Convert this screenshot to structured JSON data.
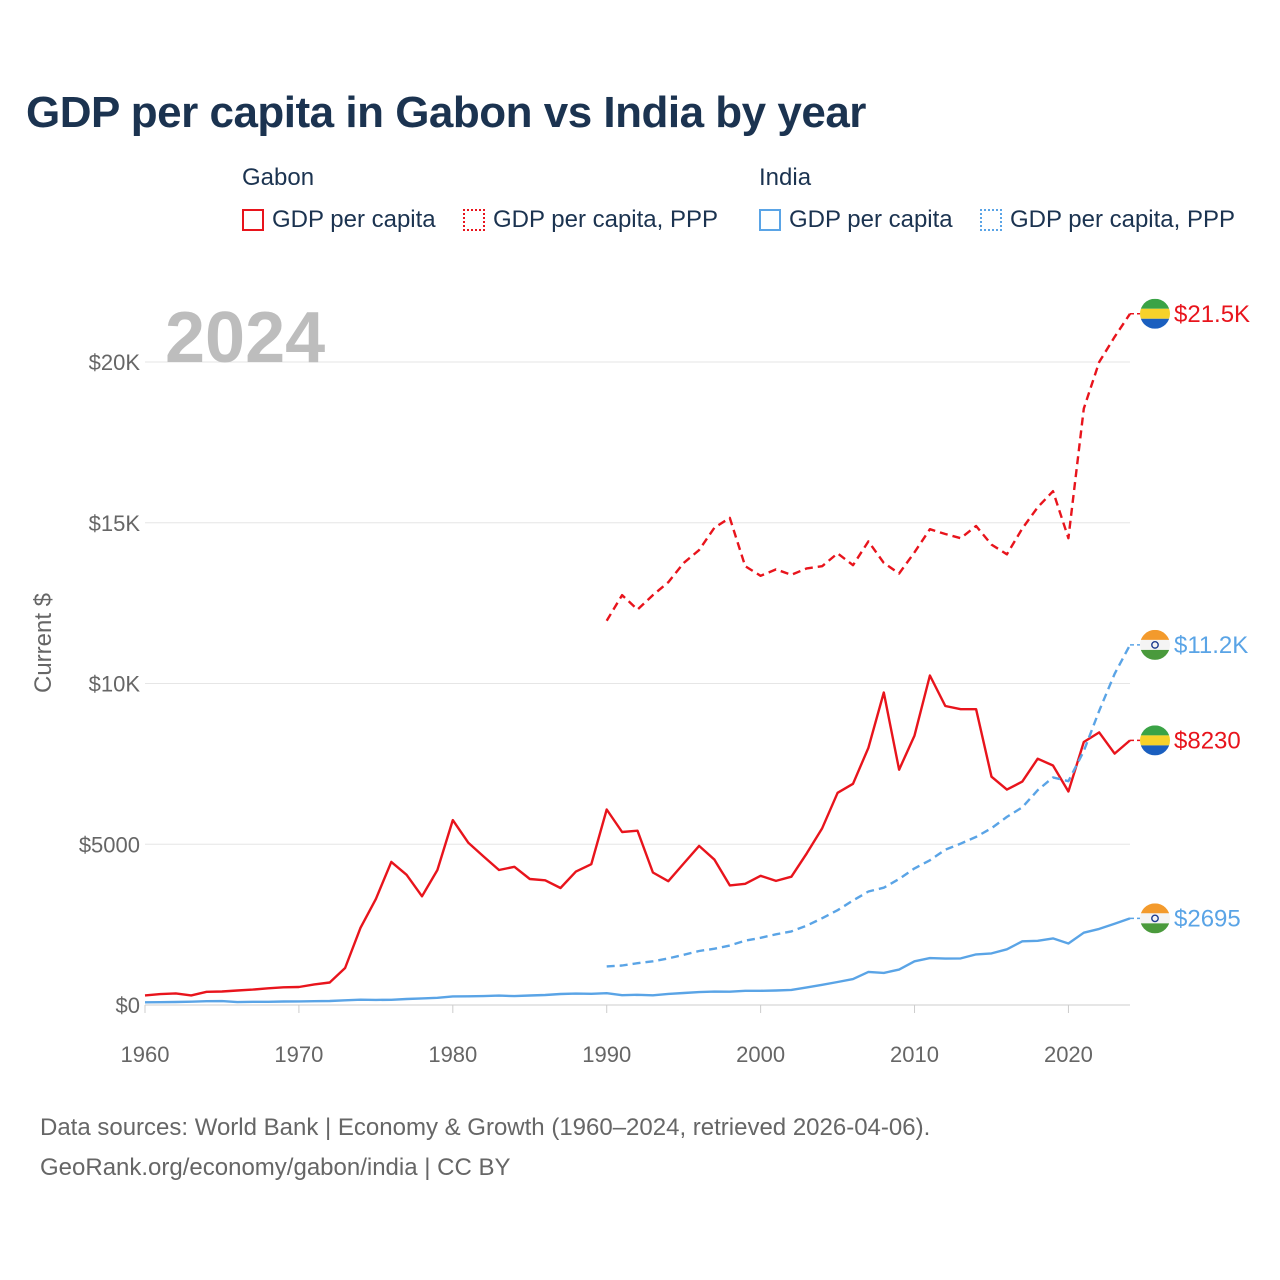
{
  "title": "GDP per capita in Gabon vs India by year",
  "legend": {
    "gabon": {
      "group": "Gabon",
      "items": [
        "GDP per capita",
        "GDP per capita, PPP"
      ]
    },
    "india": {
      "group": "India",
      "items": [
        "GDP per capita",
        "GDP per capita, PPP"
      ]
    }
  },
  "year_badge": "2024",
  "colors": {
    "gabon": "#e8141c",
    "india": "#5aa4e6",
    "grid": "#e6e6e6",
    "axis_text": "#666666",
    "badge": "#bdbdbd"
  },
  "chart_data": {
    "type": "line",
    "xlabel": "",
    "ylabel": "Current $",
    "xlim": [
      1960,
      2024
    ],
    "ylim": [
      0,
      21500
    ],
    "x_ticks": [
      1960,
      1970,
      1980,
      1990,
      2000,
      2010,
      2020
    ],
    "x_tick_labels": [
      "1960",
      "1970",
      "1980",
      "1990",
      "2000",
      "2010",
      "2020"
    ],
    "y_ticks": [
      0,
      5000,
      10000,
      15000,
      20000
    ],
    "y_tick_labels": [
      "$0",
      "$5000",
      "$10K",
      "$15K",
      "$20K"
    ],
    "series": [
      {
        "name": "Gabon GDP per capita",
        "country": "gabon",
        "style": "solid",
        "end_label": "$8230",
        "points": [
          [
            1960,
            300
          ],
          [
            1961,
            340
          ],
          [
            1962,
            360
          ],
          [
            1963,
            300
          ],
          [
            1964,
            410
          ],
          [
            1965,
            420
          ],
          [
            1966,
            450
          ],
          [
            1967,
            480
          ],
          [
            1968,
            520
          ],
          [
            1969,
            550
          ],
          [
            1970,
            560
          ],
          [
            1971,
            640
          ],
          [
            1972,
            700
          ],
          [
            1973,
            1150
          ],
          [
            1974,
            2400
          ],
          [
            1975,
            3300
          ],
          [
            1976,
            4450
          ],
          [
            1977,
            4050
          ],
          [
            1978,
            3380
          ],
          [
            1979,
            4200
          ],
          [
            1980,
            5750
          ],
          [
            1981,
            5050
          ],
          [
            1982,
            4620
          ],
          [
            1983,
            4200
          ],
          [
            1984,
            4300
          ],
          [
            1985,
            3920
          ],
          [
            1986,
            3880
          ],
          [
            1987,
            3640
          ],
          [
            1988,
            4150
          ],
          [
            1989,
            4380
          ],
          [
            1990,
            6080
          ],
          [
            1991,
            5380
          ],
          [
            1992,
            5420
          ],
          [
            1993,
            4120
          ],
          [
            1994,
            3850
          ],
          [
            1995,
            4400
          ],
          [
            1996,
            4950
          ],
          [
            1997,
            4520
          ],
          [
            1998,
            3720
          ],
          [
            1999,
            3770
          ],
          [
            2000,
            4020
          ],
          [
            2001,
            3860
          ],
          [
            2002,
            3990
          ],
          [
            2003,
            4720
          ],
          [
            2004,
            5500
          ],
          [
            2005,
            6600
          ],
          [
            2006,
            6880
          ],
          [
            2007,
            8000
          ],
          [
            2008,
            9720
          ],
          [
            2009,
            7320
          ],
          [
            2010,
            8380
          ],
          [
            2011,
            10250
          ],
          [
            2012,
            9300
          ],
          [
            2013,
            9200
          ],
          [
            2014,
            9200
          ],
          [
            2015,
            7100
          ],
          [
            2016,
            6700
          ],
          [
            2017,
            6950
          ],
          [
            2018,
            7660
          ],
          [
            2019,
            7450
          ],
          [
            2020,
            6640
          ],
          [
            2021,
            8180
          ],
          [
            2022,
            8480
          ],
          [
            2023,
            7820
          ],
          [
            2024,
            8230
          ]
        ]
      },
      {
        "name": "Gabon GDP per capita, PPP",
        "country": "gabon",
        "style": "dashed",
        "end_label": "$21.5K",
        "points": [
          [
            1990,
            11950
          ],
          [
            1991,
            12750
          ],
          [
            1992,
            12300
          ],
          [
            1993,
            12750
          ],
          [
            1994,
            13150
          ],
          [
            1995,
            13750
          ],
          [
            1996,
            14150
          ],
          [
            1997,
            14850
          ],
          [
            1998,
            15150
          ],
          [
            1999,
            13650
          ],
          [
            2000,
            13350
          ],
          [
            2001,
            13550
          ],
          [
            2002,
            13380
          ],
          [
            2003,
            13580
          ],
          [
            2004,
            13650
          ],
          [
            2005,
            14050
          ],
          [
            2006,
            13680
          ],
          [
            2007,
            14420
          ],
          [
            2008,
            13750
          ],
          [
            2009,
            13420
          ],
          [
            2010,
            14080
          ],
          [
            2011,
            14800
          ],
          [
            2012,
            14650
          ],
          [
            2013,
            14520
          ],
          [
            2014,
            14900
          ],
          [
            2015,
            14320
          ],
          [
            2016,
            14020
          ],
          [
            2017,
            14820
          ],
          [
            2018,
            15480
          ],
          [
            2019,
            15980
          ],
          [
            2020,
            14520
          ],
          [
            2021,
            18550
          ],
          [
            2022,
            20000
          ],
          [
            2023,
            20780
          ],
          [
            2024,
            21500
          ]
        ]
      },
      {
        "name": "India GDP per capita",
        "country": "india",
        "style": "solid",
        "end_label": "$2695",
        "points": [
          [
            1960,
            83
          ],
          [
            1961,
            87
          ],
          [
            1962,
            92
          ],
          [
            1963,
            102
          ],
          [
            1964,
            117
          ],
          [
            1965,
            120
          ],
          [
            1966,
            90
          ],
          [
            1967,
            98
          ],
          [
            1968,
            101
          ],
          [
            1969,
            108
          ],
          [
            1970,
            113
          ],
          [
            1971,
            119
          ],
          [
            1972,
            123
          ],
          [
            1973,
            145
          ],
          [
            1974,
            165
          ],
          [
            1975,
            159
          ],
          [
            1976,
            162
          ],
          [
            1977,
            186
          ],
          [
            1978,
            205
          ],
          [
            1979,
            224
          ],
          [
            1980,
            267
          ],
          [
            1981,
            272
          ],
          [
            1982,
            277
          ],
          [
            1983,
            292
          ],
          [
            1984,
            278
          ],
          [
            1985,
            297
          ],
          [
            1986,
            311
          ],
          [
            1987,
            342
          ],
          [
            1988,
            356
          ],
          [
            1989,
            348
          ],
          [
            1990,
            368
          ],
          [
            1991,
            304
          ],
          [
            1992,
            317
          ],
          [
            1993,
            302
          ],
          [
            1994,
            346
          ],
          [
            1995,
            374
          ],
          [
            1996,
            400
          ],
          [
            1997,
            416
          ],
          [
            1998,
            414
          ],
          [
            1999,
            441
          ],
          [
            2000,
            443
          ],
          [
            2001,
            452
          ],
          [
            2002,
            471
          ],
          [
            2003,
            546
          ],
          [
            2004,
            627
          ],
          [
            2005,
            714
          ],
          [
            2006,
            807
          ],
          [
            2007,
            1028
          ],
          [
            2008,
            999
          ],
          [
            2009,
            1102
          ],
          [
            2010,
            1358
          ],
          [
            2011,
            1458
          ],
          [
            2012,
            1444
          ],
          [
            2013,
            1450
          ],
          [
            2014,
            1574
          ],
          [
            2015,
            1606
          ],
          [
            2016,
            1733
          ],
          [
            2017,
            1981
          ],
          [
            2018,
            1997
          ],
          [
            2019,
            2072
          ],
          [
            2020,
            1913
          ],
          [
            2021,
            2250
          ],
          [
            2022,
            2366
          ],
          [
            2023,
            2530
          ],
          [
            2024,
            2695
          ]
        ]
      },
      {
        "name": "India GDP per capita, PPP",
        "country": "india",
        "style": "dashed",
        "end_label": "$11.2K",
        "points": [
          [
            1990,
            1200
          ],
          [
            1991,
            1230
          ],
          [
            1992,
            1300
          ],
          [
            1993,
            1360
          ],
          [
            1994,
            1450
          ],
          [
            1995,
            1560
          ],
          [
            1996,
            1680
          ],
          [
            1997,
            1750
          ],
          [
            1998,
            1850
          ],
          [
            1999,
            2000
          ],
          [
            2000,
            2090
          ],
          [
            2001,
            2200
          ],
          [
            2002,
            2290
          ],
          [
            2003,
            2470
          ],
          [
            2004,
            2700
          ],
          [
            2005,
            2950
          ],
          [
            2006,
            3250
          ],
          [
            2007,
            3530
          ],
          [
            2008,
            3650
          ],
          [
            2009,
            3920
          ],
          [
            2010,
            4250
          ],
          [
            2011,
            4500
          ],
          [
            2012,
            4830
          ],
          [
            2013,
            5020
          ],
          [
            2014,
            5230
          ],
          [
            2015,
            5500
          ],
          [
            2016,
            5850
          ],
          [
            2017,
            6150
          ],
          [
            2018,
            6680
          ],
          [
            2019,
            7080
          ],
          [
            2020,
            6960
          ],
          [
            2021,
            7900
          ],
          [
            2022,
            9150
          ],
          [
            2023,
            10300
          ],
          [
            2024,
            11200
          ]
        ]
      }
    ]
  },
  "source": {
    "line1": "Data sources: World Bank | Economy & Growth (1960–2024, retrieved 2026-04-06).",
    "line2": "GeoRank.org/economy/gabon/india | CC BY"
  }
}
